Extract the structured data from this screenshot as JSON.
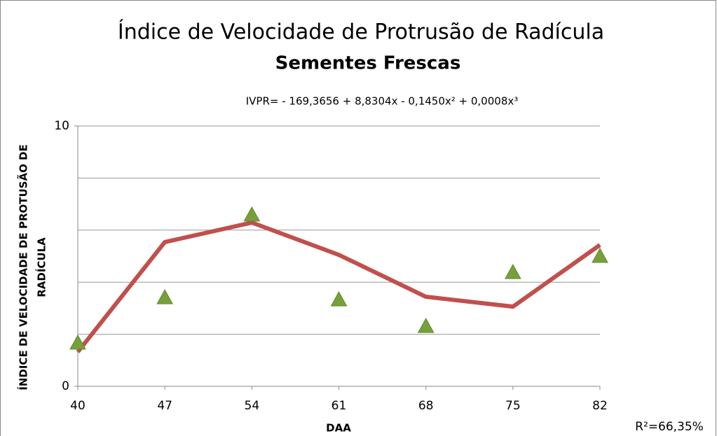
{
  "chart_data": {
    "type": "scatter",
    "title": [
      "Índice de Velocidade de Protrusão de Radícula",
      "Sementes Frescas"
    ],
    "equation": "IVPR= - 169,3656 + 8,8304x - 0,1450x² + 0,0008x³",
    "r_squared": "R²=66,35%",
    "x_label": "DAA",
    "y_label": [
      "ÍNDICE DE VELOCIDADE DE PROTUSÃO DE",
      "RADÍCULA"
    ],
    "x": [
      40,
      47,
      54,
      61,
      68,
      75,
      82
    ],
    "xlim": [
      40,
      82
    ],
    "xticks": [
      40,
      47,
      54,
      61,
      68,
      75,
      82
    ],
    "ylim": [
      0,
      10
    ],
    "yticks": [
      0,
      10
    ],
    "ygrid": [
      2,
      4,
      6,
      8,
      10
    ],
    "series": [
      {
        "kind": "markers",
        "color": "#77a03a",
        "values": [
          1.67,
          3.41,
          6.59,
          3.33,
          2.31,
          4.38,
          5.0
        ]
      },
      {
        "kind": "line",
        "color": "#c0504d",
        "values": [
          1.32,
          5.54,
          6.29,
          5.05,
          3.44,
          3.06,
          5.43
        ]
      }
    ]
  }
}
